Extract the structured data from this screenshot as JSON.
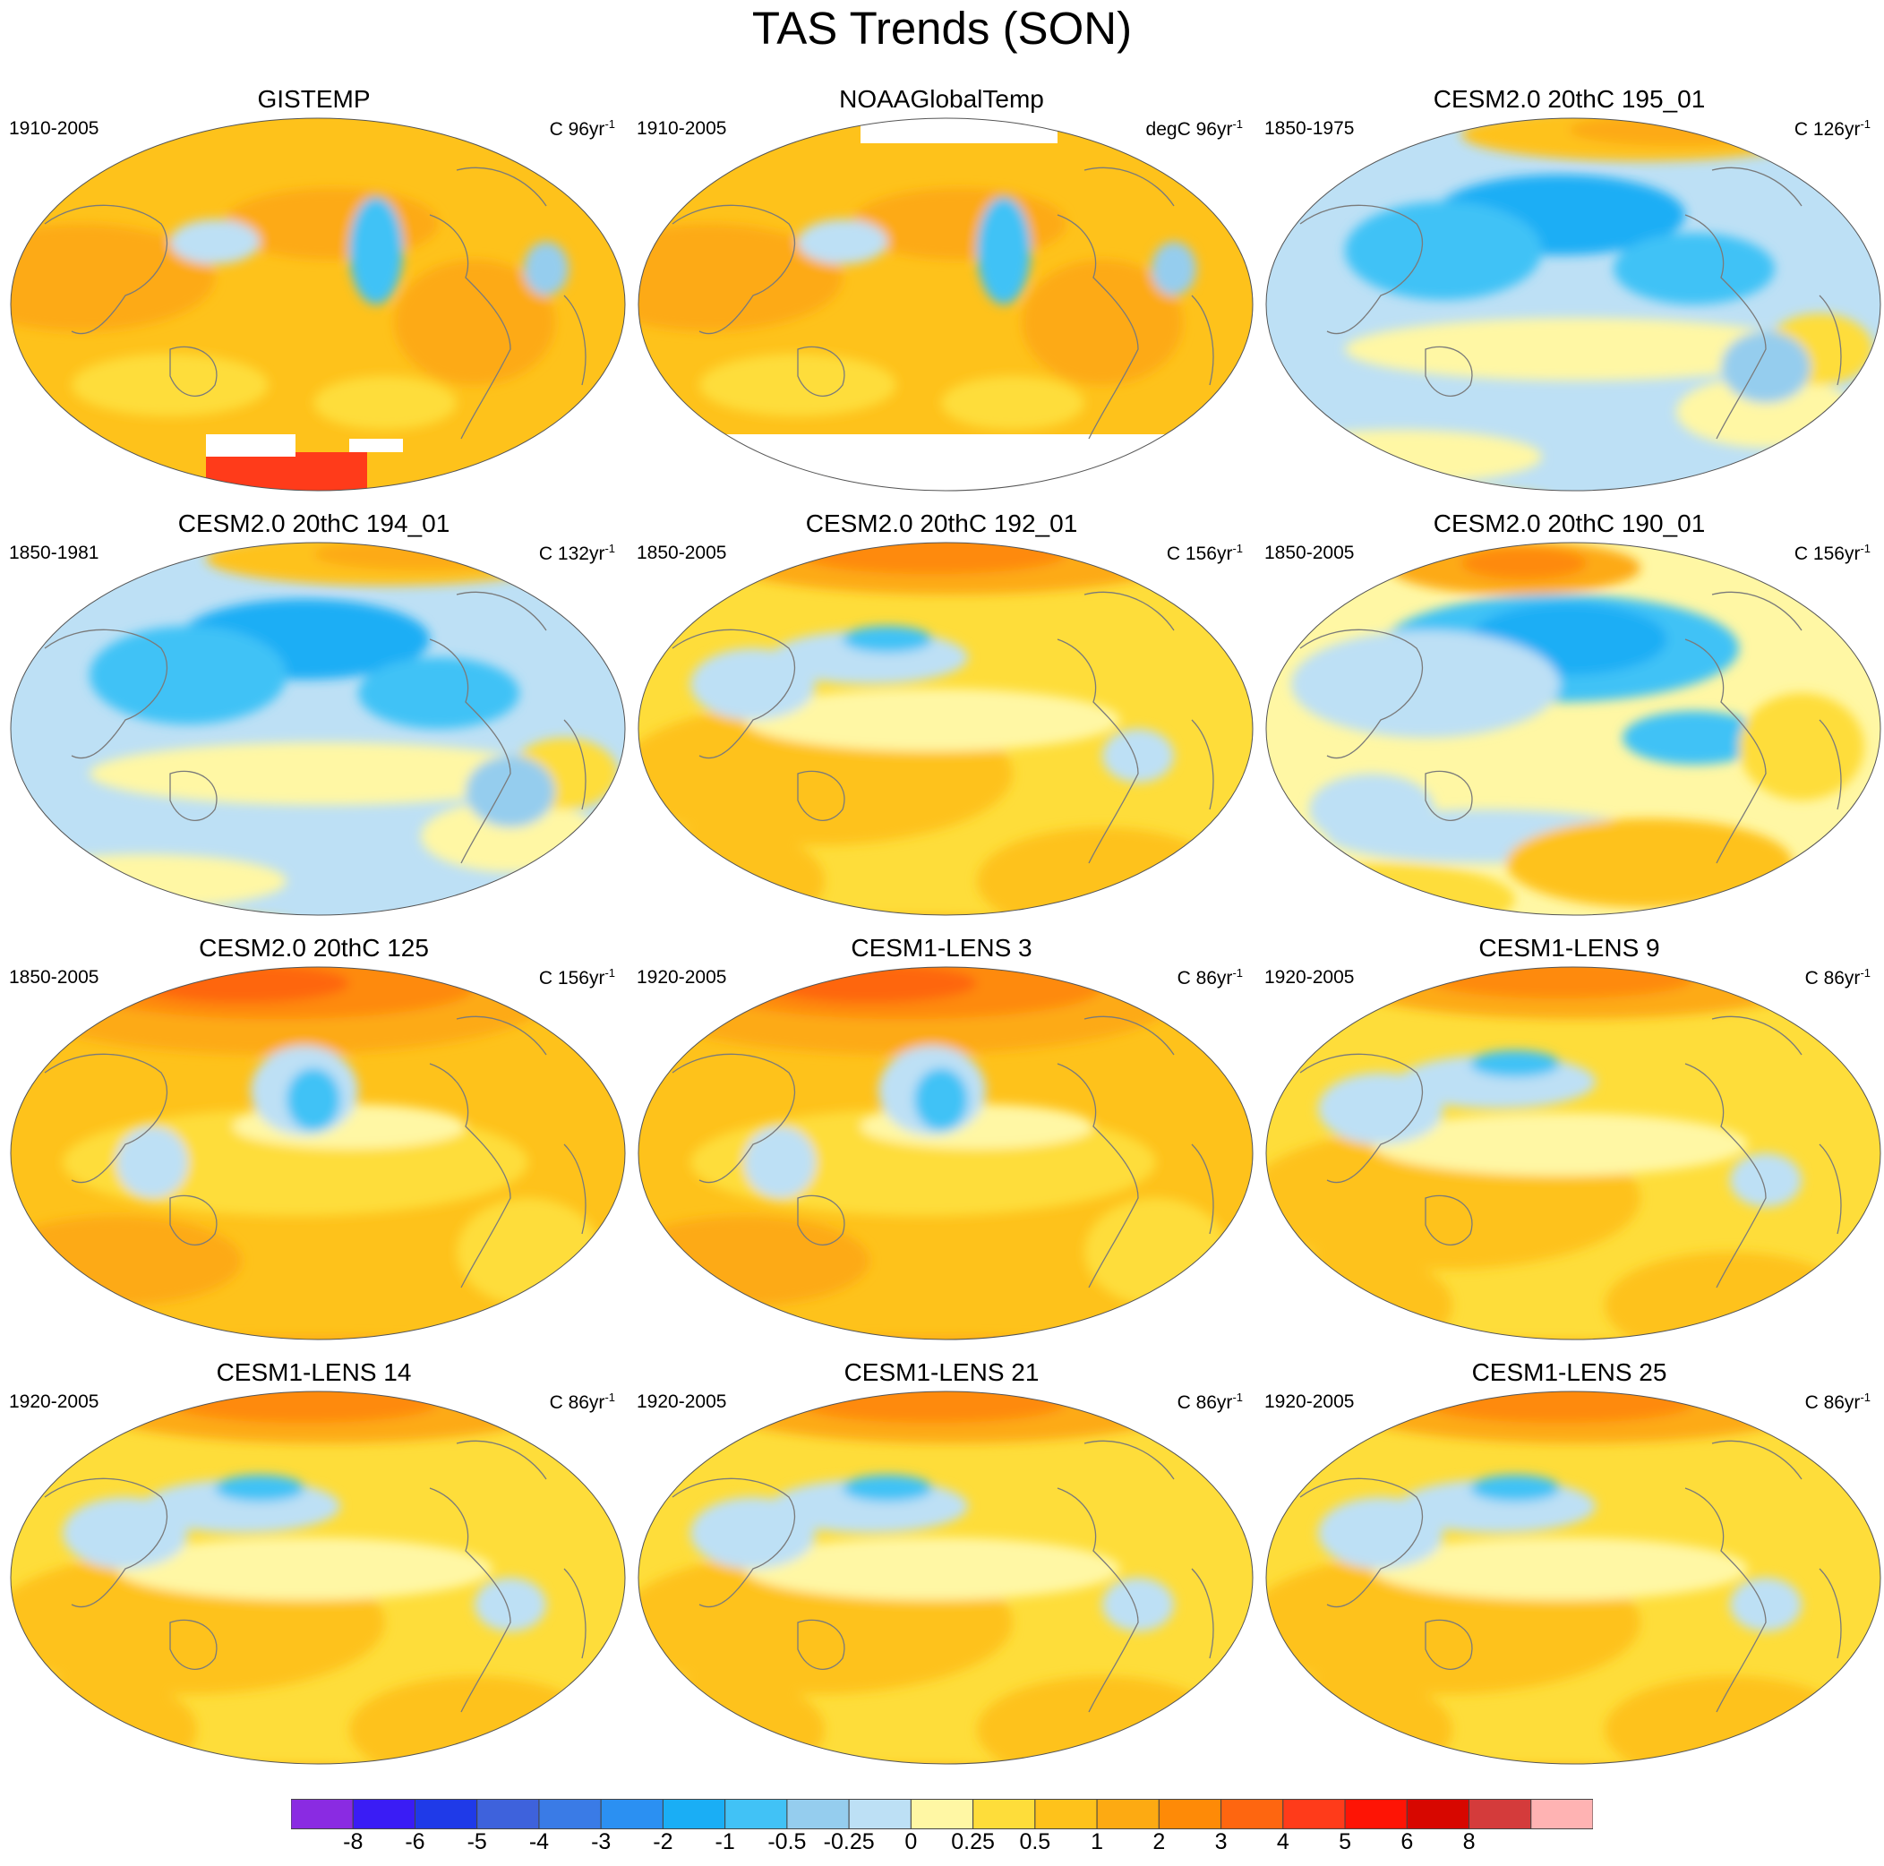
{
  "title": "TAS Trends (SON)",
  "colors": {
    "neg8": "#8a2be2",
    "neg6": "#3a1cf5",
    "neg5": "#1f3ae8",
    "neg4": "#3e62dc",
    "neg3": "#3a7be6",
    "neg2": "#2b90f2",
    "neg1": "#1aaef5",
    "neg05": "#41c2f6",
    "neg025": "#95cdee",
    "zero": "#bde0f5",
    "pos0": "#fff7a4",
    "pos025": "#fedd3a",
    "pos05": "#fec21b",
    "pos1": "#fdaa12",
    "pos2": "#fe8a07",
    "pos3": "#fe6610",
    "pos4": "#ff3b1a",
    "pos5": "#fe1405",
    "pos6": "#d70700",
    "pos8": "#d43b3b",
    "over8": "#ffb3b3",
    "coast": "#7a7a7a",
    "missing": "#ffffff"
  },
  "panels": [
    {
      "title": "GISTEMP",
      "period": "1910-2005",
      "units": "C 96yr",
      "units_exp": "-1",
      "style": "warm",
      "missing": "gis"
    },
    {
      "title": "NOAAGlobalTemp",
      "period": "1910-2005",
      "units": "degC 96yr",
      "units_exp": "-1",
      "style": "warm",
      "missing": "noaa"
    },
    {
      "title": "CESM2.0 20thC 195_01",
      "period": "1850-1975",
      "units": "C 126yr",
      "units_exp": "-1",
      "style": "cool"
    },
    {
      "title": "CESM2.0 20thC 194_01",
      "period": "1850-1981",
      "units": "C 132yr",
      "units_exp": "-1",
      "style": "cool"
    },
    {
      "title": "CESM2.0 20thC 192_01",
      "period": "1850-2005",
      "units": "C 156yr",
      "units_exp": "-1",
      "style": "mixed"
    },
    {
      "title": "CESM2.0 20thC 190_01",
      "period": "1850-2005",
      "units": "C 156yr",
      "units_exp": "-1",
      "style": "coolmix"
    },
    {
      "title": "CESM2.0 20thC 125",
      "period": "1850-2005",
      "units": "C 156yr",
      "units_exp": "-1",
      "style": "hot"
    },
    {
      "title": "CESM1-LENS 3",
      "period": "1920-2005",
      "units": "C 86yr",
      "units_exp": "-1",
      "style": "hot"
    },
    {
      "title": "CESM1-LENS 9",
      "period": "1920-2005",
      "units": "C 86yr",
      "units_exp": "-1",
      "style": "mixed"
    },
    {
      "title": "CESM1-LENS 14",
      "period": "1920-2005",
      "units": "C 86yr",
      "units_exp": "-1",
      "style": "mixed"
    },
    {
      "title": "CESM1-LENS 21",
      "period": "1920-2005",
      "units": "C 86yr",
      "units_exp": "-1",
      "style": "mixed"
    },
    {
      "title": "CESM1-LENS 25",
      "period": "1920-2005",
      "units": "C 86yr",
      "units_exp": "-1",
      "style": "mixed"
    }
  ],
  "colorbar": {
    "labels": [
      "-8",
      "-6",
      "-5",
      "-4",
      "-3",
      "-2",
      "-1",
      "-0.5",
      "-0.25",
      "0",
      "0.25",
      "0.5",
      "1",
      "2",
      "3",
      "4",
      "5",
      "6",
      "8"
    ],
    "bins": [
      "#8a2be2",
      "#3a1cf5",
      "#1f3ae8",
      "#3e62dc",
      "#3a7be6",
      "#2b90f2",
      "#1aaef5",
      "#41c2f6",
      "#95cdee",
      "#bde0f5",
      "#fff7a4",
      "#fedd3a",
      "#fec21b",
      "#fdaa12",
      "#fe8a07",
      "#fe6610",
      "#ff3b1a",
      "#fe1405",
      "#d70700",
      "#d43b3b",
      "#ffb3b3"
    ]
  }
}
